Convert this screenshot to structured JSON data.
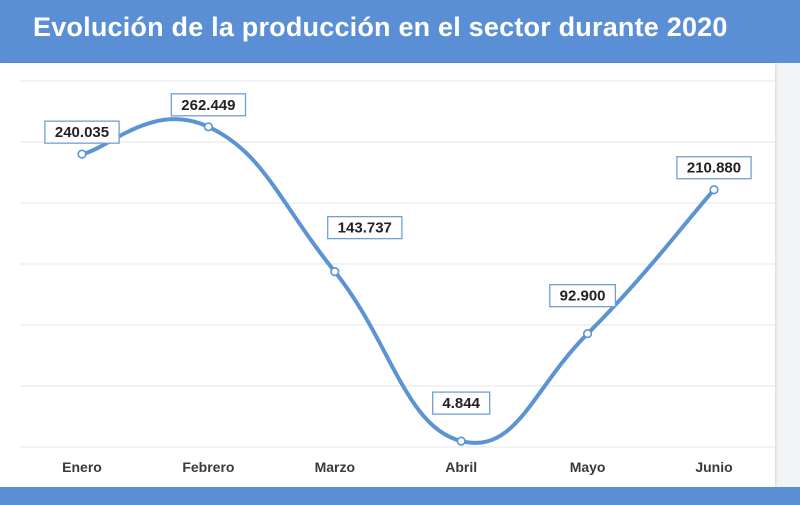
{
  "title": "Evolución de la producción en el sector durante 2020",
  "colors": {
    "header": "#5a8fd6",
    "line": "#5b93d3",
    "grid": "#e2e4e8"
  },
  "chart_data": {
    "type": "line",
    "title": "Evolución de la producción en el sector durante 2020",
    "categories": [
      "Enero",
      "Febrero",
      "Marzo",
      "Abril",
      "Mayo",
      "Junio"
    ],
    "values": [
      240035,
      262449,
      143737,
      4844,
      92900,
      210880
    ],
    "data_labels": [
      "240.035",
      "262.449",
      "143.737",
      "4.844",
      "92.900",
      "210.880"
    ],
    "xlabel": "",
    "ylabel": "",
    "ylim": [
      0,
      300000
    ],
    "grid": true,
    "smooth": true,
    "legend": "none"
  }
}
